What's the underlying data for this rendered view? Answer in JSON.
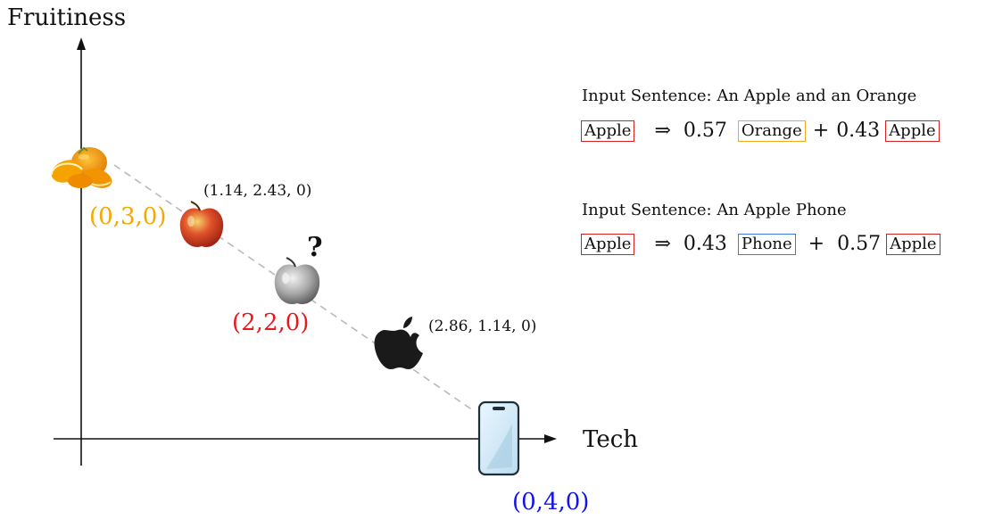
{
  "axes": {
    "y_label": "Fruitiness",
    "x_label": "Tech"
  },
  "points": {
    "orange": {
      "icon": "orange-icon",
      "label": "(0,3,0)",
      "color": "#F2A900"
    },
    "apple": {
      "icon": "red-apple-icon",
      "label": "(1.14, 2.43, 0)"
    },
    "gray_apple": {
      "icon": "gray-apple-icon",
      "label": "(2,2,0)",
      "mark": "?",
      "color": "#E8191C"
    },
    "apple_logo": {
      "icon": "apple-logo-icon",
      "label": "(2.86, 1.14, 0)"
    },
    "phone": {
      "icon": "smartphone-icon",
      "label": "(0,4,0)",
      "color": "#1414E6"
    }
  },
  "examples": [
    {
      "sentence": "Input Sentence: An Apple and an Orange",
      "lhs": "Apple",
      "arrow": "⇒",
      "coef1": "0.57",
      "term1": "Orange",
      "plus": "+",
      "coef2": "0.43",
      "term2": "Apple",
      "term1_color": "#F0A81E"
    },
    {
      "sentence": "Input Sentence: An Apple Phone",
      "lhs": "Apple",
      "arrow": "⇒",
      "coef1": "0.43",
      "term1": "Phone",
      "plus": "+",
      "coef2": "0.57",
      "term2": "Apple",
      "term1_color": "#3C7DDC"
    }
  ],
  "box_color_apple": "#D42020"
}
